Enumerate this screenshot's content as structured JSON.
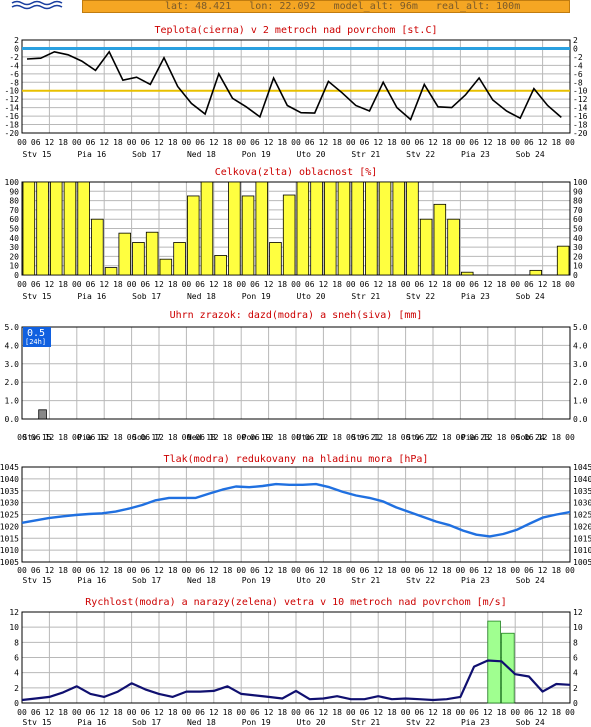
{
  "header": {
    "info_text": "lat: 48.421   lon: 22.092   model_alt: 96m   real_alt: 100m"
  },
  "colors": {
    "title": "#cc0000",
    "temp_line": "#000000",
    "zero_line": "#2aa0e0",
    "ten_line": "#e8c000",
    "cloud_bar": "#ffff40",
    "precip_snow": "#888888",
    "badge": "#1060e0",
    "pressure_line": "#2070e0",
    "wind_line": "#101070",
    "gust_bar": "#a0ff90"
  },
  "x_axis": {
    "hour_labels": [
      "00",
      "06",
      "12",
      "18",
      "00",
      "06",
      "12",
      "18",
      "00",
      "06",
      "12",
      "18",
      "00",
      "06",
      "12",
      "18",
      "00",
      "06",
      "12",
      "18",
      "00",
      "06",
      "12",
      "18",
      "00",
      "06",
      "12",
      "18",
      "00",
      "06",
      "12",
      "18",
      "00",
      "06",
      "12",
      "18",
      "00",
      "06",
      "12",
      "18",
      "00"
    ],
    "day_labels": [
      "Stv 15",
      "Pia 16",
      "Sob 17",
      "Ned 18",
      "Pon 19",
      "Uto 20",
      "Str 21",
      "Stv 22",
      "Pia 23",
      "Sob 24"
    ]
  },
  "chart_data": [
    {
      "type": "line",
      "title": "Teplota(cierna) v 2 metroch nad povrchom [st.C]",
      "ylim": [
        -20,
        2
      ],
      "y_ticks": [
        "2",
        "0",
        "-2",
        "-4",
        "-6",
        "-8",
        "-10",
        "-12",
        "-14",
        "-16",
        "-18",
        "-20"
      ],
      "reference_lines": [
        0,
        -10
      ],
      "series": [
        {
          "values": [
            -2.5,
            -2.3,
            -0.8,
            -1.5,
            -3,
            -5.2,
            -0.8,
            -7.5,
            -6.8,
            -8.5,
            -2.2,
            -9,
            -13,
            -15.5,
            -6,
            -11.8,
            -13.8,
            -16.2,
            -7,
            -13.5,
            -15.2,
            -15.3,
            -7.8,
            -10.5,
            -13.5,
            -14.8,
            -8,
            -14,
            -16.8,
            -8.5,
            -13.8,
            -14,
            -11,
            -7,
            -12.2,
            -14.8,
            -16.5,
            -9.5,
            -13.5,
            -16.3
          ]
        }
      ]
    },
    {
      "type": "bar",
      "title": "Celkova(zlta) oblacnost [%]",
      "ylim": [
        0,
        100
      ],
      "y_ticks": [
        "100",
        "90",
        "80",
        "70",
        "60",
        "50",
        "40",
        "30",
        "20",
        "10",
        "0"
      ],
      "series": [
        {
          "values": [
            100,
            100,
            100,
            100,
            100,
            60,
            8,
            45,
            35,
            46,
            17,
            35,
            85,
            100,
            21,
            100,
            85,
            100,
            35,
            86,
            100,
            100,
            100,
            100,
            100,
            100,
            100,
            100,
            100,
            60,
            76,
            60,
            3,
            0,
            0,
            0,
            0,
            5,
            0,
            31
          ]
        }
      ]
    },
    {
      "type": "bar",
      "title": "Uhrn zrazok: dazd(modra) a sneh(siva) [mm]",
      "ylim": [
        0,
        5.0
      ],
      "y_ticks": [
        "5.0",
        "4.0",
        "3.0",
        "2.0",
        "1.0",
        "0.0"
      ],
      "badge": {
        "value": "0.5",
        "label": "[24h]"
      },
      "series": [
        {
          "values": [
            0,
            0.5,
            0,
            0,
            0,
            0,
            0,
            0,
            0,
            0,
            0,
            0,
            0,
            0,
            0,
            0,
            0,
            0,
            0,
            0,
            0,
            0,
            0,
            0,
            0,
            0,
            0,
            0,
            0,
            0,
            0,
            0,
            0,
            0,
            0,
            0,
            0,
            0,
            0,
            0
          ]
        }
      ]
    },
    {
      "type": "line",
      "title": "Tlak(modra) redukovany na hladinu mora [hPa]",
      "ylim": [
        1005,
        1045
      ],
      "y_ticks": [
        "1045",
        "1040",
        "1035",
        "1030",
        "1025",
        "1020",
        "1015",
        "1010",
        "1005"
      ],
      "series": [
        {
          "values": [
            1021.5,
            1022.5,
            1023.5,
            1024.2,
            1024.8,
            1025.2,
            1025.5,
            1026.2,
            1027.5,
            1029,
            1031,
            1032,
            1032,
            1032,
            1033.8,
            1035.5,
            1036.8,
            1036.5,
            1037,
            1037.8,
            1037.5,
            1037.5,
            1037.8,
            1036.5,
            1034.5,
            1033,
            1032,
            1030.5,
            1028,
            1026,
            1024,
            1022,
            1020.5,
            1018.2,
            1016.5,
            1015.8,
            1016.8,
            1018.5,
            1021.2,
            1023.8,
            1025,
            1026
          ]
        }
      ]
    },
    {
      "type": "line",
      "title": "Rychlost(modra) a narazy(zelena) vetra v 10 metroch nad povrchom [m/s]",
      "ylim": [
        0,
        12
      ],
      "y_ticks": [
        "12",
        "10",
        "8",
        "6",
        "4",
        "2",
        "0"
      ],
      "series": [
        {
          "values": [
            0.4,
            0.6,
            0.8,
            1.4,
            2.2,
            1.2,
            0.8,
            1.5,
            2.6,
            1.8,
            1.2,
            0.8,
            1.5,
            1.5,
            1.6,
            2.2,
            1.2,
            1,
            0.8,
            0.6,
            1.6,
            0.5,
            0.6,
            0.9,
            0.5,
            0.5,
            0.9,
            0.5,
            0.6,
            0.5,
            0.4,
            0.5,
            0.8,
            4.8,
            5.6,
            5.5,
            3.8,
            3.5,
            1.5,
            2.5,
            2.4
          ]
        },
        {
          "values": [
            0,
            0,
            0,
            0,
            0,
            0,
            0,
            0,
            0,
            0,
            0,
            0,
            0,
            0,
            0,
            0,
            0,
            0,
            0,
            0,
            0,
            0,
            0,
            0,
            0,
            0,
            0,
            0,
            0,
            0,
            0,
            0,
            0,
            0,
            10.8,
            9.2,
            0,
            0,
            0,
            0,
            0
          ]
        }
      ]
    }
  ]
}
